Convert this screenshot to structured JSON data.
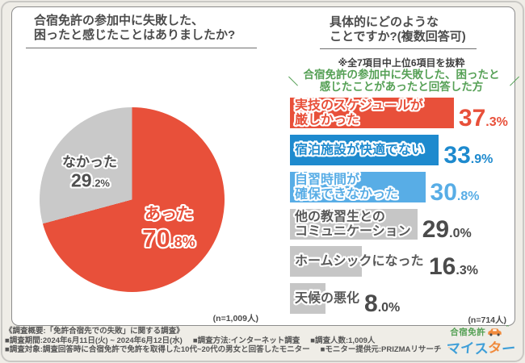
{
  "colors": {
    "red": "#e8503a",
    "blue": "#1e8ace",
    "light_blue": "#58ade6",
    "gray_bar": "#c6c6c6",
    "pie_gray": "#c9c9c9",
    "dark_text": "#4b4b4b",
    "green": "#55a055",
    "logo_blue": "#3f9fd8",
    "logo_orange": "#f08a3c",
    "logo_green": "#54a054"
  },
  "chart_data": [
    {
      "type": "pie",
      "title_lines": [
        "合宿免許の参加中に失敗した、",
        "困ったと感じたことはありましたか?"
      ],
      "labels": [
        "あった",
        "なかった"
      ],
      "values": [
        70.8,
        29.2
      ],
      "colors": [
        "#e8503a",
        "#c9c9c9"
      ],
      "label_text_colors": [
        "#e8503a",
        "#4f4f4f"
      ],
      "start": "top",
      "direction": "clockwise",
      "n_label": "(n=1,009人)"
    },
    {
      "type": "bar",
      "orientation": "horizontal",
      "title_lines": [
        "具体的にどのような",
        "ことですか?(複数回答可)"
      ],
      "note": "※全7項目中上位6項目を抜粋",
      "subtitle_lines": [
        "合宿免許の参加中に失敗した、困ったと",
        "感じたことがあったと回答した方"
      ],
      "subtitle_mark_left": "＼",
      "subtitle_mark_right": "／",
      "categories": [
        "実技のスケジュールが厳しかった",
        "宿泊施設が快適でない",
        "自習時間が確保できなかった",
        "他の教習生とのコミュニケーション",
        "ホームシックになった",
        "天候の悪化"
      ],
      "category_lines": [
        [
          "実技のスケジュールが",
          "厳しかった"
        ],
        [
          "宿泊施設が快適でない"
        ],
        [
          "自習時間が",
          "確保できなかった"
        ],
        [
          "他の教習生との",
          "コミュニケーション"
        ],
        [
          "ホームシックになった"
        ],
        [
          "天候の悪化"
        ]
      ],
      "values": [
        37.3,
        33.9,
        30.8,
        29.0,
        16.3,
        8.0
      ],
      "bar_colors": [
        "#e8503a",
        "#1e8ace",
        "#58ade6",
        "#c6c6c6",
        "#c6c6c6",
        "#c6c6c6"
      ],
      "label_text_colors": [
        "#e8503a",
        "#1e8ace",
        "#58ade6",
        "#595959",
        "#595959",
        "#595959"
      ],
      "value_text_colors": [
        "#e8503a",
        "#1e8ace",
        "#58ade6",
        "#4b4b4b",
        "#4b4b4b",
        "#4b4b4b"
      ],
      "xlim": [
        0,
        40
      ],
      "n_label": "(n=714人)"
    }
  ],
  "footer": {
    "line1": "《調査概要:「免許合宿先での失敗」に関する調査》",
    "line2_items": [
      "■調査期間:2024年6月11日(火) ~ 2024年6月12日(水)",
      "■調査方法:インターネット調査",
      "■調査人数:1,009人"
    ],
    "line3_items": [
      "■調査対象:調査回答時に合宿免許で免許を取得した10代~20代の男女と回答したモニター",
      "■モニター提供元:PRIZMAリサーチ"
    ]
  },
  "logo": {
    "top_text": "合宿免許",
    "bottom_letters": [
      "マ",
      "イ",
      "ス",
      "タ",
      "ー"
    ],
    "bottom_letter_colors": [
      "#3f9fd8",
      "#3f9fd8",
      "#3f9fd8",
      "#f08a3c",
      "#3f9fd8"
    ]
  }
}
